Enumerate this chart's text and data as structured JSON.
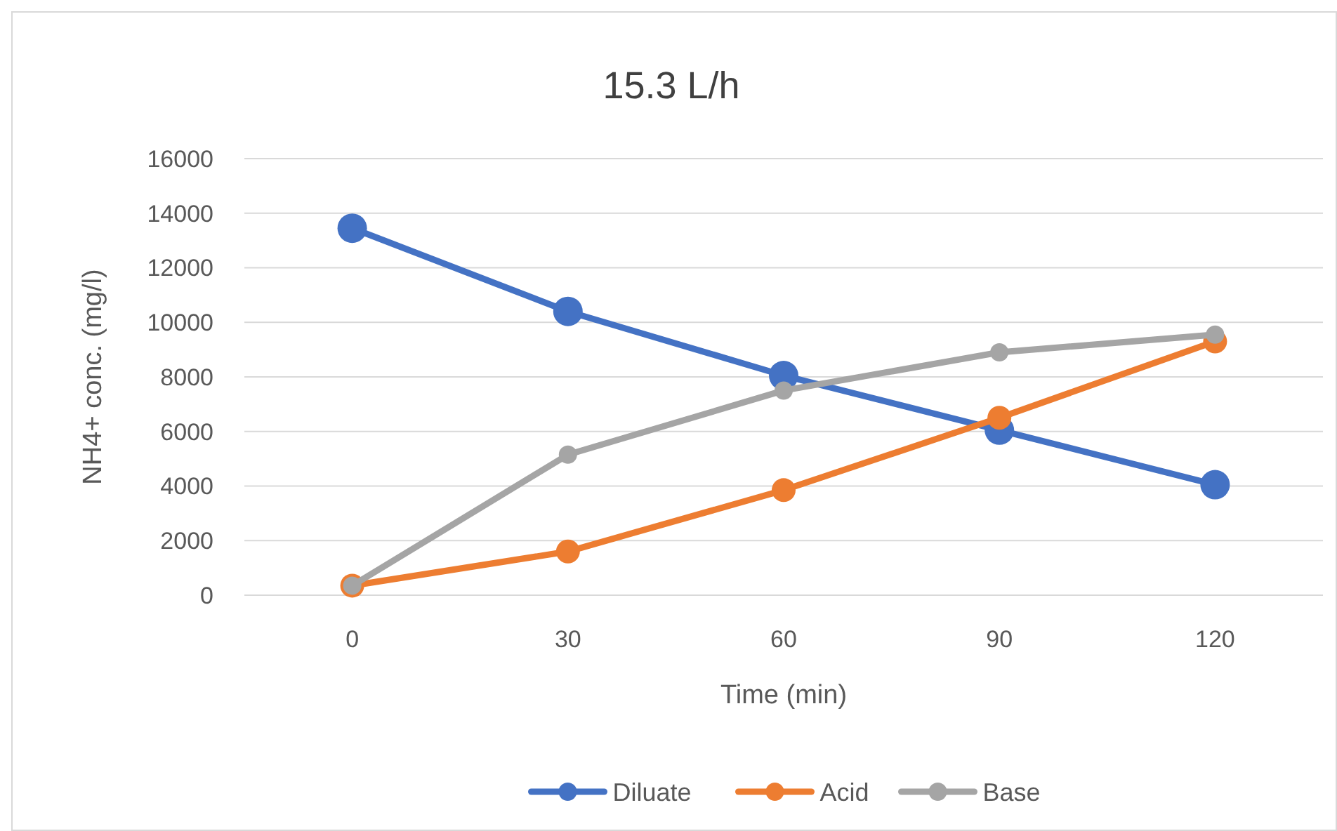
{
  "chart_data": {
    "type": "line",
    "title": "15.3 L/h",
    "xlabel": "Time (min)",
    "ylabel": "NH4+ conc. (mg/l)",
    "categories": [
      "0",
      "30",
      "60",
      "90",
      "120"
    ],
    "series": [
      {
        "name": "Diluate",
        "color": "#4472c4",
        "values": [
          13450,
          10400,
          8050,
          6050,
          4050
        ]
      },
      {
        "name": "Acid",
        "color": "#ed7d31",
        "values": [
          350,
          1600,
          3850,
          6500,
          9300
        ]
      },
      {
        "name": "Base",
        "color": "#a5a5a5",
        "values": [
          350,
          5150,
          7500,
          8900,
          9550
        ]
      }
    ],
    "ylim": [
      0,
      16000
    ],
    "yticks": [
      0,
      2000,
      4000,
      6000,
      8000,
      10000,
      12000,
      14000,
      16000
    ],
    "grid": "y",
    "legend": "bottom",
    "marker": "circle",
    "line_style": "solid"
  }
}
